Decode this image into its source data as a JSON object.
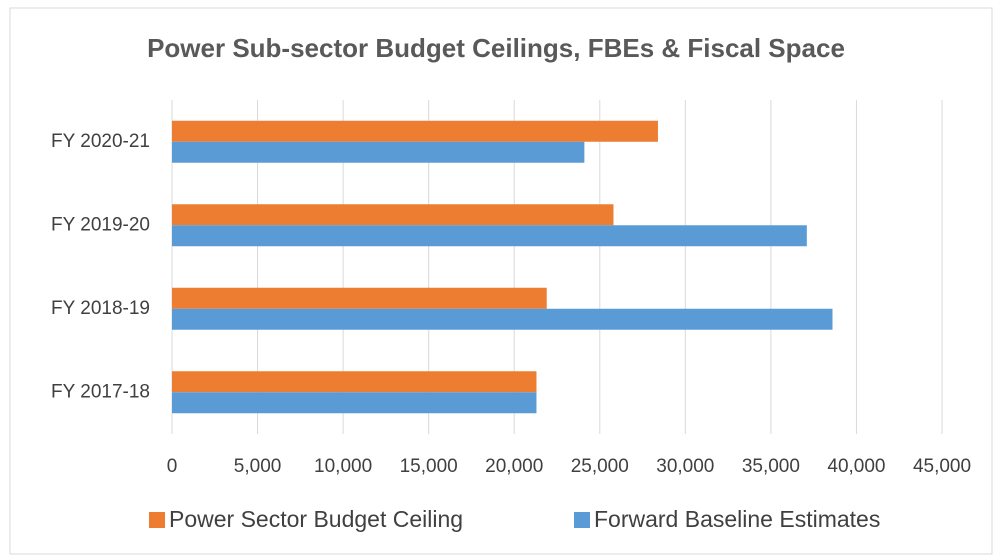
{
  "chart_data": {
    "type": "hbar",
    "title": "Power Sub-sector Budget Ceilings, FBEs & Fiscal Space",
    "categories": [
      "FY 2017-18",
      "FY 2018-19",
      "FY 2019-20",
      "FY 2020-21"
    ],
    "series": [
      {
        "name": "Power Sector Budget Ceiling",
        "color": "#ed7d31",
        "values": [
          21300,
          21900,
          25800,
          28400
        ]
      },
      {
        "name": "Forward Baseline Estimates",
        "color": "#5b9bd5",
        "values": [
          21300,
          38600,
          37100,
          24100
        ]
      }
    ],
    "xlim": [
      0,
      45000
    ],
    "xticks": [
      0,
      {
        "value": 5000,
        "label": "5,000"
      },
      {
        "value": 10000,
        "label": "10,000"
      },
      {
        "value": 15000,
        "label": "15,000"
      },
      {
        "value": 20000,
        "label": "20,000"
      },
      {
        "value": 25000,
        "label": "25,000"
      },
      {
        "value": 30000,
        "label": "30,000"
      },
      {
        "value": 35000,
        "label": "35,000"
      },
      {
        "value": 40000,
        "label": "40,000"
      },
      {
        "value": 45000,
        "label": "45,000"
      }
    ],
    "grid": true,
    "legend": "bottom"
  }
}
